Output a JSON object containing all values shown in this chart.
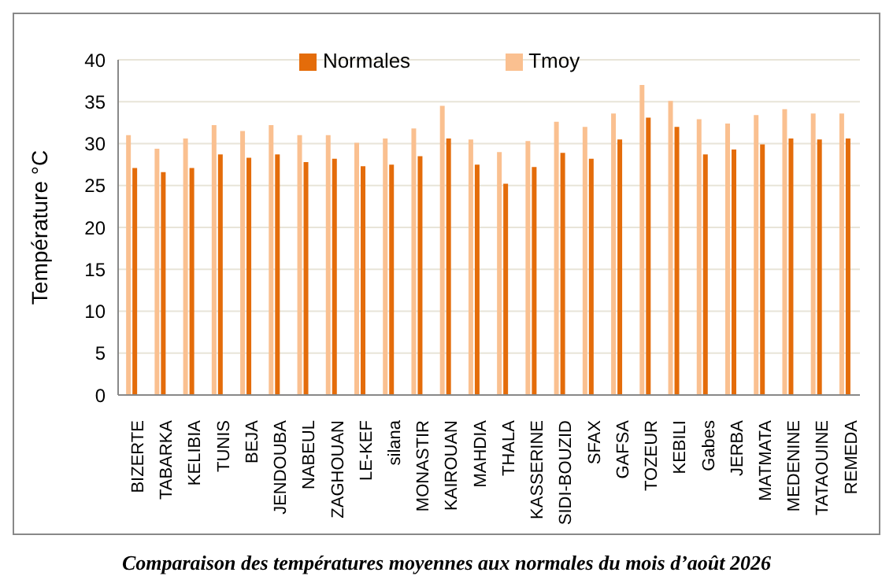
{
  "chart_data": {
    "type": "bar",
    "ylabel": "Température °C",
    "annotations": [
      "Comparaison des températures moyennes aux normales du mois d’août 2026"
    ],
    "categories": [
      "BIZERTE",
      "TABARKA",
      "KELIBIA",
      "TUNIS",
      "BEJA",
      "JENDOUBA",
      "NABEUL",
      "ZAGHOUAN",
      "LE-KEF",
      "silana",
      "MONASTIR",
      "KAIROUAN",
      "MAHDIA",
      "THALA",
      "KASSERINE",
      "SIDI-BOUZID",
      "SFAX",
      "GAFSA",
      "TOZEUR",
      "KEBILI",
      "Gabes",
      "JERBA",
      "MATMATA",
      "MEDENINE",
      "TATAOUINE",
      "REMEDA"
    ],
    "series": [
      {
        "name": "Tmoy",
        "color": "#fac090",
        "values": [
          31.0,
          29.4,
          30.6,
          32.2,
          31.5,
          32.2,
          31.0,
          31.0,
          30.1,
          30.6,
          31.8,
          34.5,
          30.5,
          29.0,
          30.3,
          32.6,
          32.0,
          33.6,
          37.0,
          35.1,
          32.9,
          32.4,
          33.4,
          34.1,
          33.6,
          33.6
        ]
      },
      {
        "name": "Normales",
        "color": "#e46c0a",
        "values": [
          27.1,
          26.6,
          27.1,
          28.7,
          28.3,
          28.7,
          27.8,
          28.2,
          27.3,
          27.5,
          28.5,
          30.6,
          27.5,
          25.2,
          27.2,
          28.9,
          28.2,
          30.5,
          33.1,
          32.0,
          28.7,
          29.3,
          29.9,
          30.6,
          30.5,
          30.6
        ]
      }
    ],
    "ylim": [
      0,
      40
    ],
    "yticks": [
      0,
      5,
      10,
      15,
      20,
      25,
      30,
      35,
      40
    ],
    "grid": "y",
    "legend": "top"
  }
}
